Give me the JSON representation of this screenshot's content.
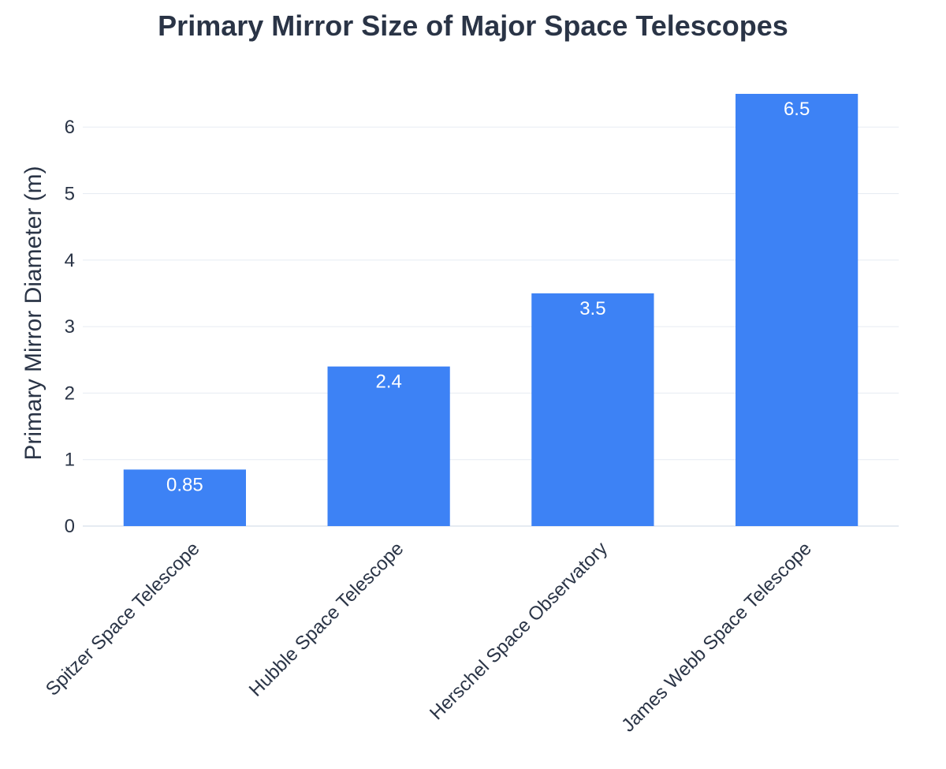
{
  "chart_data": {
    "type": "bar",
    "title": "Primary Mirror Size of Major Space Telescopes",
    "xlabel": "",
    "ylabel": "Primary Mirror Diameter (m)",
    "categories": [
      "Spitzer Space Telescope",
      "Hubble Space Telescope",
      "Herschel Space Observatory",
      "James Webb Space Telescope"
    ],
    "values": [
      0.85,
      2.4,
      3.5,
      6.5
    ],
    "data_labels": [
      "0.85",
      "2.4",
      "3.5",
      "6.5"
    ],
    "ylim": [
      0,
      6.5
    ],
    "yticks": [
      0,
      1,
      2,
      3,
      4,
      5,
      6
    ],
    "ytick_labels": [
      "0",
      "1",
      "2",
      "3",
      "4",
      "5",
      "6"
    ],
    "grid": true,
    "legend": "none",
    "colors": {
      "bar": "#3d82f5",
      "text": "#2a3446",
      "grid": "#e6ebf2",
      "data_label": "#ffffff"
    }
  }
}
